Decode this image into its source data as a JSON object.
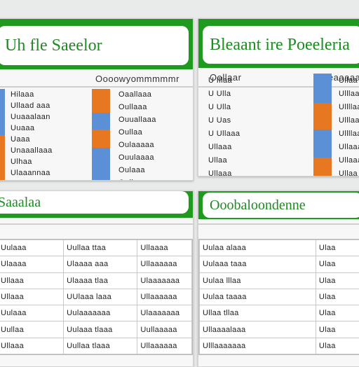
{
  "colors": {
    "header_green": "#1f9a1f",
    "title_green": "#1e8a22",
    "orange": "#e87722",
    "blue": "#5b8fd6"
  },
  "panel1": {
    "title": "Uh fle Saeelor",
    "subtitle": "Oooowyommmmmr",
    "left_rows": [
      "Hilaaa",
      "Ullaad aaa",
      "Uuaaalaan",
      "Uuaaa",
      "Uaaa",
      "Unaaallaaa",
      "Ulhaa",
      "Ulaaannaa",
      "Uulaaa"
    ],
    "right_rows": [
      "Oaallaaa",
      "Oullaaa",
      "Ouuallaaa",
      "Oullaa",
      "Oulaaaaa",
      "Ouulaaaa",
      "Oulaaa",
      "Oullaaaa"
    ]
  },
  "panel2": {
    "title": "Bleaant ire Poeeleria",
    "subtitle_left": "Oollaar",
    "subtitle_right": "Beeaaaaaaan",
    "left_rows": [
      "U Illaa",
      "U Ulla",
      "U Ulla",
      "U Uas",
      "U Ullaaa",
      "Ullaaa",
      "Ullaa",
      "Ullaaa"
    ],
    "right_rows": [
      "Ullaa",
      "Ulllaa",
      "Ullllaa",
      "Ulllaa",
      "Ullllaa",
      "Ullaaa",
      "Ullaaa",
      "Ullaa"
    ]
  },
  "panel3": {
    "title": "Saaalaa",
    "rows": [
      [
        "Uulaaa",
        "Uullaa ttaa",
        "Ullaaaa"
      ],
      [
        "Ulaaaa",
        "Ulaaaa aaa",
        "Ullaaaaaa"
      ],
      [
        "Ullaaa",
        "Ulaaaa tlaa",
        "Ulaaaaaaa"
      ],
      [
        "Ullaaa",
        "UUlaaa laaa",
        "Ullaaaaaa"
      ],
      [
        "Uulaaa",
        "Uulaaaaaaa",
        "Ulaaaaaaa"
      ],
      [
        "Uullaa",
        "Uulaaa tlaaa",
        "Uullaaaaa"
      ],
      [
        "Ullaaa",
        "Uullaa tlaaa",
        "Ullaaaaaa"
      ]
    ]
  },
  "panel4": {
    "title": "Ooobaloondenne",
    "rows": [
      [
        "Uulaa alaaa",
        "Ulaa"
      ],
      [
        "Uulaaa taaa",
        "Ulaa"
      ],
      [
        "Uulaa lllaa",
        "Ulaa"
      ],
      [
        "Uulaa taaaa",
        "Ulaa"
      ],
      [
        "Ullaa tllaa",
        "Ulaa"
      ],
      [
        "Ullaaaalaaa",
        "Ulaa"
      ],
      [
        "Ulllaaaaaaa",
        "Ulaa"
      ]
    ]
  }
}
